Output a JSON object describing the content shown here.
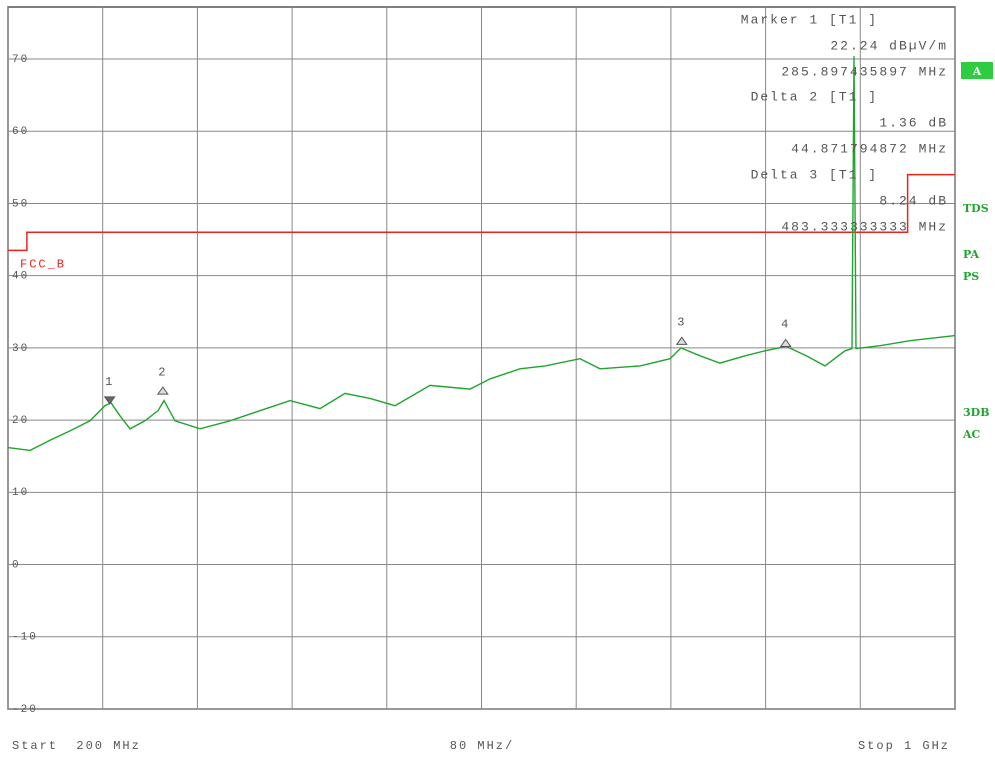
{
  "chart_data": {
    "type": "line",
    "xlim": [
      200,
      1000
    ],
    "xticks": [
      200,
      280,
      360,
      440,
      520,
      600,
      680,
      760,
      840,
      920,
      1000
    ],
    "ylim": [
      -20,
      77.2
    ],
    "yticks": [
      70,
      60,
      50,
      40,
      30,
      20,
      10,
      0,
      -10,
      -20
    ],
    "grid": true,
    "start_label": "Start  200 MHz",
    "span_label": "80 MHz/",
    "stop_label": "Stop  1 GHz",
    "series": [
      {
        "name": "FCC_B",
        "color": "#e8231e",
        "x": [
          200,
          216,
          216,
          960,
          960,
          1000
        ],
        "values": [
          43.5,
          43.5,
          46,
          46,
          54,
          54
        ]
      },
      {
        "name": "T1",
        "color": "#1fa52e",
        "x": [
          200,
          218.6,
          235.5,
          252.4,
          269.3,
          281.9,
          287.0,
          294.6,
          303.1,
          315.7,
          326.7,
          331.8,
          341.1,
          362.2,
          387.5,
          412.9,
          438.2,
          463.6,
          484.7,
          505.8,
          526.9,
          556.5,
          590.3,
          607.2,
          632.5,
          653.7,
          683.2,
          700.1,
          733.9,
          759.2,
          768.5,
          784.6,
          801.5,
          822.6,
          839.5,
          857.3,
          874.3,
          890.2,
          907.1,
          913.0,
          914.7,
          916.4,
          936.7,
          962.0,
          1000
        ],
        "values": [
          16.2,
          15.8,
          17.2,
          18.5,
          19.9,
          22.0,
          22.4,
          20.6,
          18.8,
          19.9,
          21.3,
          22.7,
          19.9,
          18.8,
          19.9,
          21.3,
          22.7,
          21.6,
          23.7,
          23.0,
          22.0,
          24.8,
          24.3,
          25.7,
          27.1,
          27.5,
          28.5,
          27.1,
          27.5,
          28.5,
          30.0,
          28.9,
          27.9,
          28.9,
          29.6,
          30.2,
          28.9,
          27.5,
          29.6,
          29.9,
          70.4,
          29.9,
          30.3,
          31.0,
          31.7
        ]
      }
    ],
    "markers": [
      {
        "label": "1",
        "x": 285.9,
        "y": 22.24
      },
      {
        "label": "2",
        "x": 330.8,
        "y": 23.6
      },
      {
        "label": "3",
        "x": 769.2,
        "y": 30.48
      },
      {
        "label": "4",
        "x": 857,
        "y": 30.2
      }
    ],
    "marker_info": [
      "Marker 1 [T1 ]",
      "22.24 dBµV/m",
      "285.897435897 MHz",
      "Delta 2 [T1 ]",
      "1.36 dB",
      "44.871794872 MHz",
      "Delta 3 [T1 ]",
      "8.24 dB",
      "483.333333333 MHz"
    ],
    "side_labels": [
      "A",
      "TDS",
      "PA",
      "PS",
      "3DB",
      "AC"
    ]
  }
}
